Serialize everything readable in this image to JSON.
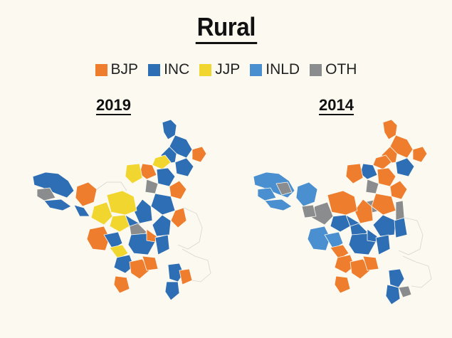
{
  "title": "Rural",
  "legend": [
    {
      "label": "BJP",
      "color": "#ee7d2d"
    },
    {
      "label": "INC",
      "color": "#2e6eb5"
    },
    {
      "label": "JJP",
      "color": "#f2d630"
    },
    {
      "label": "INLD",
      "color": "#4a8fd0"
    },
    {
      "label": "OTH",
      "color": "#8a8c8e"
    }
  ],
  "maps": [
    {
      "year": "2019"
    },
    {
      "year": "2014"
    }
  ]
}
